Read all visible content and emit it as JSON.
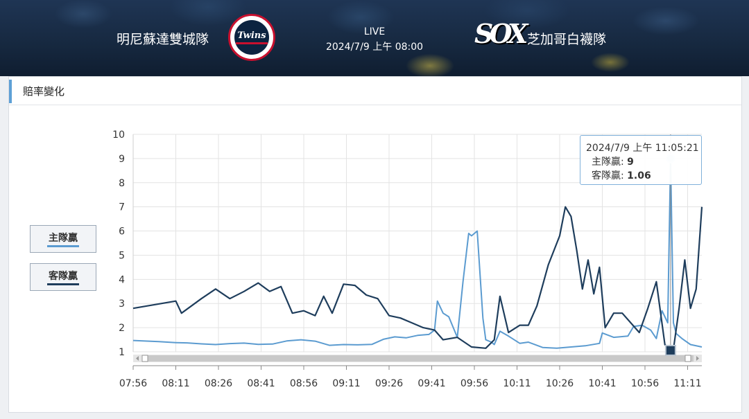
{
  "header": {
    "home_team": "明尼蘇達雙城隊",
    "away_team": "芝加哥白襪隊",
    "status": "LIVE",
    "datetime": "2024/7/9 上午 08:00",
    "home_logo_text": "Twins",
    "away_logo_text": "SOX"
  },
  "panel": {
    "title": "賠率變化"
  },
  "legend": [
    {
      "label": "主隊贏",
      "color": "#5b9bd0"
    },
    {
      "label": "客隊贏",
      "color": "#1e3d5c"
    }
  ],
  "tooltip": {
    "time": "2024/7/9 上午 11:05:21",
    "home_label": "主隊贏:",
    "home_value": "9",
    "away_label": "客隊贏:",
    "away_value": "1.06"
  },
  "chart_data": {
    "type": "line",
    "xlabel": "",
    "ylabel": "",
    "xlim": [
      "07:56",
      "11:16"
    ],
    "ylim": [
      1,
      10
    ],
    "yticks": [
      1,
      2,
      3,
      4,
      5,
      6,
      7,
      8,
      9,
      10
    ],
    "xticks": [
      "07:56",
      "08:11",
      "08:26",
      "08:41",
      "08:56",
      "09:11",
      "09:26",
      "09:41",
      "09:56",
      "10:11",
      "10:26",
      "10:41",
      "10:56",
      "11:11"
    ],
    "grid": true,
    "legend_position": "left",
    "series": [
      {
        "name": "主隊贏",
        "color": "#5b9bd0",
        "x": [
          "07:56",
          "08:05",
          "08:11",
          "08:15",
          "08:20",
          "08:25",
          "08:30",
          "08:35",
          "08:40",
          "08:45",
          "08:50",
          "08:55",
          "09:00",
          "09:05",
          "09:10",
          "09:15",
          "09:20",
          "09:24",
          "09:28",
          "09:32",
          "09:36",
          "09:40",
          "09:42",
          "09:43",
          "09:45",
          "09:47",
          "09:50",
          "09:52",
          "09:54",
          "09:55",
          "09:57",
          "09:59",
          "10:00",
          "10:02",
          "10:03",
          "10:05",
          "10:08",
          "10:12",
          "10:15",
          "10:20",
          "10:25",
          "10:30",
          "10:35",
          "10:40",
          "10:41",
          "10:45",
          "10:50",
          "10:52",
          "10:55",
          "10:58",
          "11:00",
          "11:02",
          "11:04",
          "11:05",
          "11:06",
          "11:07",
          "11:09",
          "11:12",
          "11:16"
        ],
        "values": [
          1.47,
          1.42,
          1.38,
          1.37,
          1.33,
          1.3,
          1.34,
          1.36,
          1.31,
          1.32,
          1.45,
          1.5,
          1.44,
          1.27,
          1.3,
          1.29,
          1.31,
          1.52,
          1.62,
          1.58,
          1.68,
          1.72,
          1.9,
          3.1,
          2.6,
          2.45,
          1.6,
          3.9,
          5.9,
          5.8,
          6.0,
          2.4,
          1.5,
          1.4,
          1.3,
          1.85,
          1.65,
          1.35,
          1.4,
          1.18,
          1.15,
          1.2,
          1.25,
          1.35,
          1.78,
          1.6,
          1.65,
          2.05,
          2.1,
          1.9,
          1.55,
          2.7,
          2.2,
          9.0,
          2.2,
          1.75,
          1.55,
          1.3,
          1.2
        ]
      },
      {
        "name": "客隊贏",
        "color": "#1e3d5c",
        "x": [
          "07:56",
          "08:11",
          "08:13",
          "08:20",
          "08:25",
          "08:30",
          "08:35",
          "08:40",
          "08:44",
          "08:48",
          "08:52",
          "08:56",
          "09:00",
          "09:03",
          "09:06",
          "09:10",
          "09:14",
          "09:18",
          "09:22",
          "09:26",
          "09:30",
          "09:34",
          "09:38",
          "09:42",
          "09:45",
          "09:50",
          "09:55",
          "10:00",
          "10:03",
          "10:05",
          "10:08",
          "10:12",
          "10:15",
          "10:18",
          "10:22",
          "10:24",
          "10:26",
          "10:28",
          "10:30",
          "10:32",
          "10:34",
          "10:36",
          "10:38",
          "10:40",
          "10:42",
          "10:45",
          "10:48",
          "10:51",
          "10:54",
          "10:57",
          "11:00",
          "11:03",
          "11:05",
          "11:06",
          "11:08",
          "11:10",
          "11:12",
          "11:14",
          "11:16"
        ],
        "values": [
          2.8,
          3.1,
          2.6,
          3.2,
          3.6,
          3.2,
          3.5,
          3.85,
          3.5,
          3.7,
          2.6,
          2.7,
          2.5,
          3.3,
          2.6,
          3.8,
          3.75,
          3.35,
          3.2,
          2.5,
          2.4,
          2.2,
          2.0,
          1.9,
          1.5,
          1.6,
          1.2,
          1.15,
          1.5,
          3.3,
          1.8,
          2.1,
          2.1,
          2.9,
          4.6,
          5.2,
          5.8,
          7.0,
          6.6,
          5.2,
          3.6,
          4.8,
          3.4,
          4.5,
          2.0,
          2.6,
          2.6,
          2.2,
          1.8,
          2.8,
          3.9,
          1.3,
          1.06,
          1.1,
          2.8,
          4.8,
          2.8,
          3.6,
          7.0
        ]
      }
    ]
  }
}
